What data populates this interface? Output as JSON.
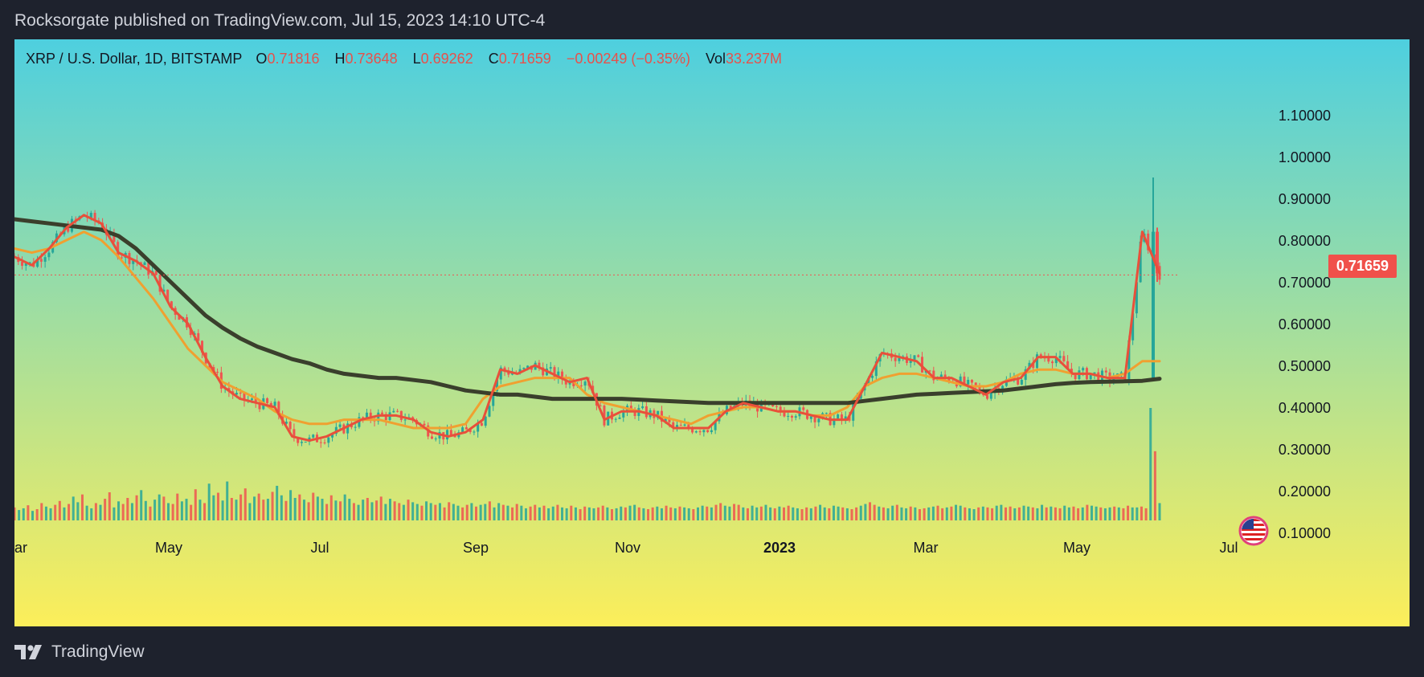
{
  "header": {
    "title": "Rocksorgate published on TradingView.com, Jul 15, 2023 14:10 UTC-4"
  },
  "legend": {
    "symbol": "XRP / U.S. Dollar, 1D, BITSTAMP",
    "open_label": "O",
    "open": "0.71816",
    "high_label": "H",
    "high": "0.73648",
    "low_label": "L",
    "low": "0.69262",
    "close_label": "C",
    "close": "0.71659",
    "change": "−0.00249 (−0.35%)",
    "vol_label": "Vol",
    "vol": "33.237M"
  },
  "last_price": "0.71659",
  "footer": {
    "brand": "TradingView"
  },
  "icons": {
    "logo": "tradingview-logo-icon",
    "flag": "us-flag-icon"
  },
  "colors": {
    "up": "#26a69a",
    "down": "#ef5350",
    "ma_fast": "#e8503a",
    "ma_mid": "#f0a030",
    "ma_slow": "#3a3f2c",
    "bg_top": "#4ecfdf",
    "bg_bottom": "#fcee5a"
  },
  "chart_data": {
    "type": "line",
    "title": "XRP / U.S. Dollar, 1D, BITSTAMP",
    "x_ticks": [
      "ar",
      "May",
      "Jul",
      "Sep",
      "Nov",
      "2023",
      "Mar",
      "May",
      "Jul"
    ],
    "y_ticks": [
      "1.10000",
      "1.00000",
      "0.90000",
      "0.80000",
      "0.70000",
      "0.60000",
      "0.50000",
      "0.40000",
      "0.30000",
      "0.20000",
      "0.10000"
    ],
    "ylim": [
      0.0,
      1.15
    ],
    "grid": false,
    "series": [
      {
        "values": [
          0.76,
          0.74,
          0.78,
          0.83,
          0.86,
          0.84,
          0.77,
          0.75,
          0.72,
          0.64,
          0.6,
          0.52,
          0.45,
          0.42,
          0.41,
          0.4,
          0.33,
          0.32,
          0.33,
          0.35,
          0.37,
          0.38,
          0.38,
          0.37,
          0.34,
          0.33,
          0.34,
          0.37,
          0.49,
          0.48,
          0.5,
          0.48,
          0.46,
          0.47,
          0.37,
          0.39,
          0.39,
          0.38,
          0.35,
          0.35,
          0.35,
          0.39,
          0.41,
          0.4,
          0.39,
          0.39,
          0.38,
          0.37,
          0.37,
          0.45,
          0.53,
          0.52,
          0.51,
          0.47,
          0.47,
          0.45,
          0.43,
          0.46,
          0.47,
          0.52,
          0.52,
          0.48,
          0.48,
          0.47,
          0.47,
          0.82,
          0.72
        ]
      },
      {
        "values": [
          0.78,
          0.77,
          0.78,
          0.8,
          0.82,
          0.8,
          0.76,
          0.71,
          0.66,
          0.6,
          0.54,
          0.5,
          0.46,
          0.44,
          0.42,
          0.39,
          0.37,
          0.36,
          0.36,
          0.37,
          0.37,
          0.37,
          0.36,
          0.35,
          0.35,
          0.35,
          0.36,
          0.42,
          0.45,
          0.46,
          0.47,
          0.47,
          0.47,
          0.43,
          0.41,
          0.4,
          0.39,
          0.38,
          0.37,
          0.36,
          0.38,
          0.39,
          0.4,
          0.4,
          0.39,
          0.39,
          0.38,
          0.38,
          0.4,
          0.45,
          0.47,
          0.48,
          0.48,
          0.47,
          0.46,
          0.45,
          0.45,
          0.46,
          0.48,
          0.49,
          0.49,
          0.48,
          0.48,
          0.47,
          0.48,
          0.51,
          0.51
        ]
      },
      {
        "values": [
          0.85,
          0.845,
          0.84,
          0.835,
          0.83,
          0.825,
          0.81,
          0.78,
          0.74,
          0.7,
          0.66,
          0.62,
          0.59,
          0.565,
          0.545,
          0.53,
          0.515,
          0.505,
          0.49,
          0.48,
          0.475,
          0.47,
          0.47,
          0.465,
          0.46,
          0.45,
          0.44,
          0.435,
          0.43,
          0.43,
          0.425,
          0.42,
          0.42,
          0.42,
          0.42,
          0.42,
          0.418,
          0.416,
          0.414,
          0.412,
          0.41,
          0.41,
          0.41,
          0.41,
          0.41,
          0.41,
          0.41,
          0.41,
          0.41,
          0.415,
          0.42,
          0.425,
          0.43,
          0.432,
          0.434,
          0.436,
          0.438,
          0.44,
          0.445,
          0.45,
          0.455,
          0.458,
          0.46,
          0.461,
          0.462,
          0.463,
          0.468
        ]
      }
    ],
    "volume": {
      "range": [
        0,
        260
      ],
      "unit": "M",
      "values": [
        30,
        24,
        28,
        35,
        22,
        26,
        40,
        32,
        28,
        36,
        45,
        30,
        38,
        55,
        42,
        60,
        34,
        28,
        40,
        36,
        50,
        65,
        30,
        44,
        38,
        52,
        40,
        58,
        70,
        45,
        32,
        48,
        60,
        55,
        40,
        38,
        62,
        44,
        50,
        36,
        72,
        48,
        40,
        85,
        58,
        64,
        46,
        90,
        52,
        48,
        60,
        74,
        40,
        55,
        62,
        48,
        50,
        66,
        80,
        58,
        45,
        70,
        52,
        60,
        48,
        42,
        64,
        55,
        50,
        38,
        58,
        46,
        44,
        60,
        50,
        40,
        36,
        48,
        52,
        42,
        46,
        55,
        38,
        50,
        44,
        40,
        36,
        48,
        42,
        38,
        34,
        44,
        40,
        36,
        40,
        30,
        42,
        38,
        34,
        30,
        36,
        40,
        32,
        36,
        38,
        44,
        30,
        40,
        36,
        34,
        30,
        38,
        34,
        28,
        32,
        36,
        30,
        34,
        28,
        32,
        36,
        30,
        28,
        34,
        30,
        26,
        32,
        30,
        28,
        30,
        34,
        30,
        26,
        28,
        32,
        30,
        34,
        36,
        30,
        28,
        26,
        30,
        32,
        28,
        34,
        30,
        28,
        32,
        30,
        28,
        26,
        30,
        34,
        32,
        30,
        36,
        40,
        34,
        32,
        38,
        36,
        30,
        28,
        34,
        30,
        32,
        36,
        30,
        28,
        32,
        30,
        34,
        30,
        28,
        26,
        30,
        28,
        32,
        36,
        30,
        28,
        34,
        32,
        30,
        28,
        26,
        30,
        34,
        38,
        42,
        36,
        32,
        30,
        28,
        34,
        36,
        30,
        28,
        32,
        30,
        26,
        28,
        30,
        32,
        34,
        28,
        30,
        32,
        36,
        34,
        30,
        28,
        26,
        30,
        32,
        30,
        28,
        34,
        36,
        30,
        32,
        28,
        30,
        34,
        32,
        30,
        28,
        36,
        30,
        32,
        30,
        28,
        34,
        30,
        32,
        28,
        30,
        36,
        34,
        32,
        30,
        28,
        30,
        32,
        30,
        28,
        34,
        30,
        30,
        32,
        28,
        260,
        160,
        40
      ]
    }
  }
}
